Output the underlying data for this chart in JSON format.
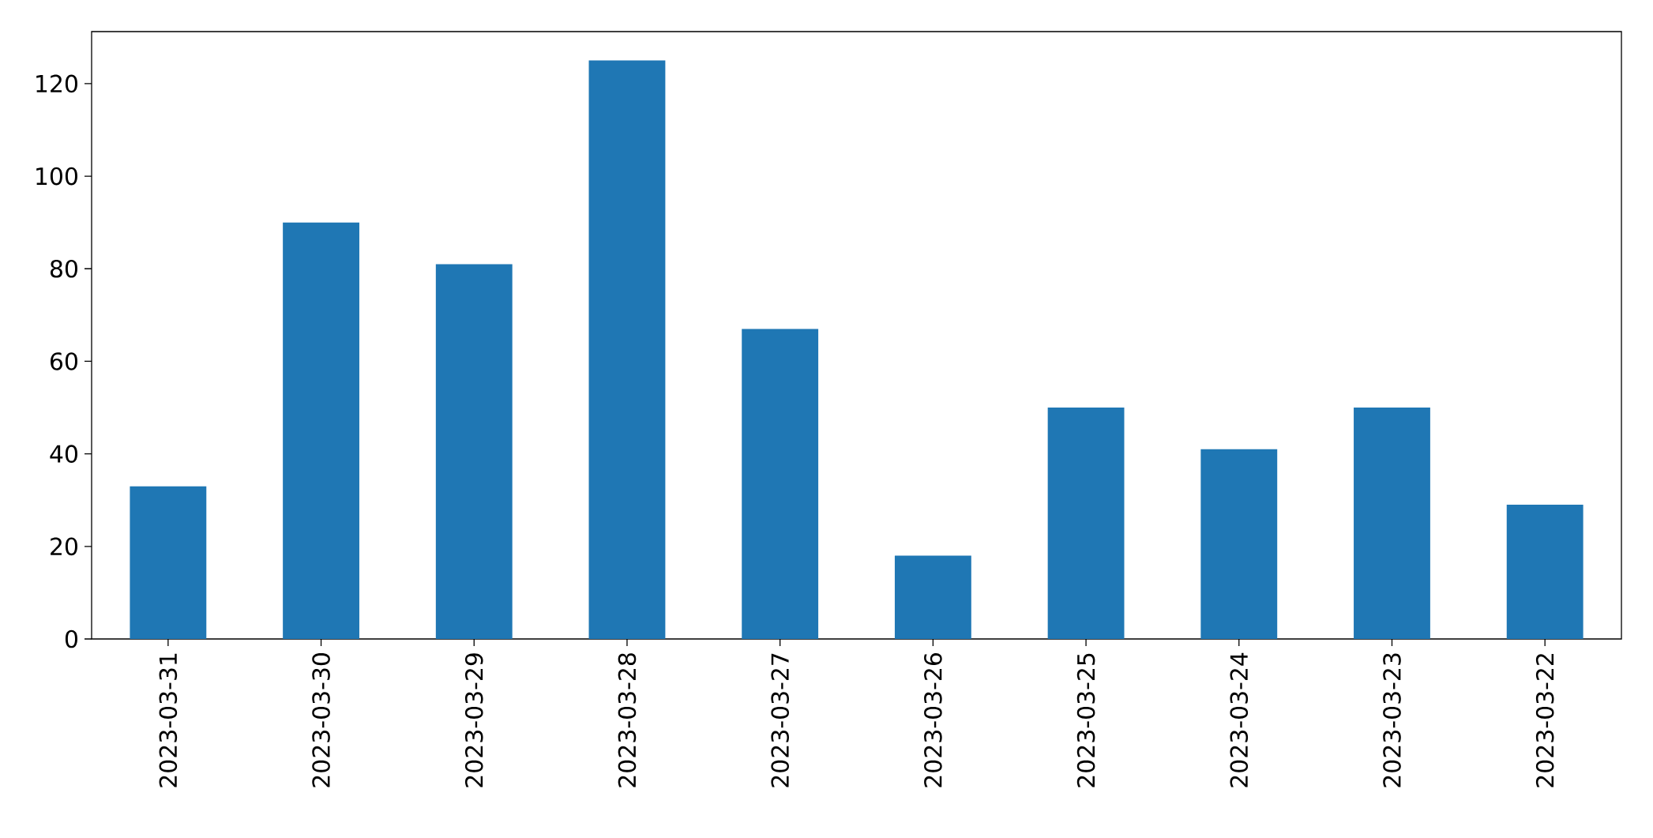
{
  "chart_data": {
    "type": "bar",
    "categories": [
      "2023-03-31",
      "2023-03-30",
      "2023-03-29",
      "2023-03-28",
      "2023-03-27",
      "2023-03-26",
      "2023-03-25",
      "2023-03-24",
      "2023-03-23",
      "2023-03-22"
    ],
    "values": [
      33,
      90,
      81,
      125,
      67,
      18,
      50,
      41,
      50,
      29
    ],
    "color": "#1f77b4",
    "ylim": [
      0,
      131.25
    ],
    "yticks": [
      0,
      20,
      40,
      60,
      80,
      100,
      120
    ],
    "grid": false
  }
}
